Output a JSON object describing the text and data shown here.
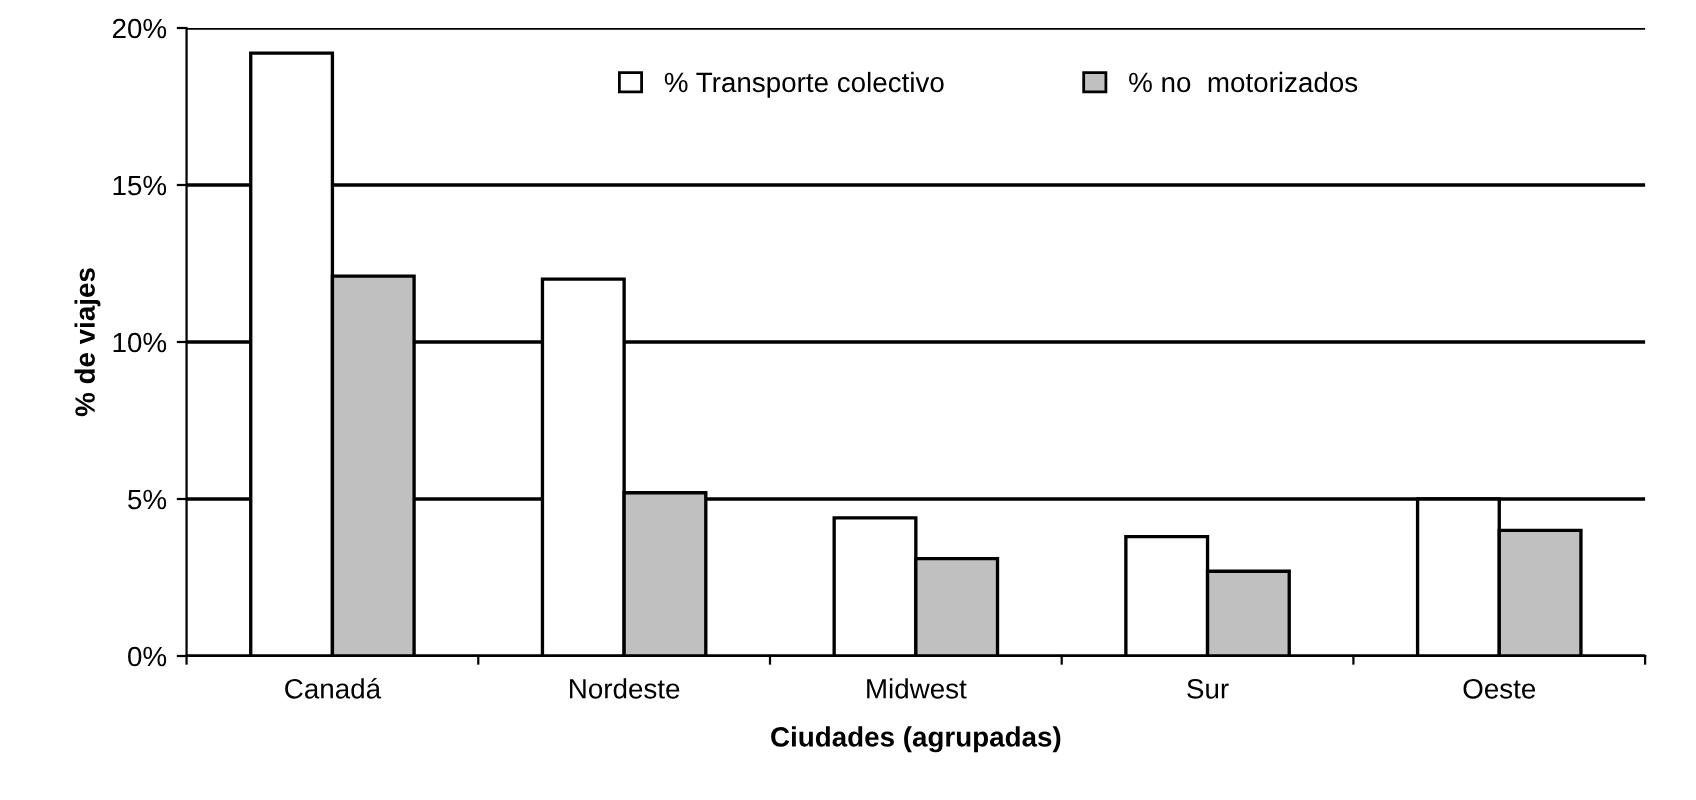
{
  "chart_data": {
    "type": "bar",
    "xlabel": "Ciudades (agrupadas)",
    "ylabel": "% de viajes",
    "categories": [
      "Canadá",
      "Nordeste",
      "Midwest",
      "Sur",
      "Oeste"
    ],
    "series": [
      {
        "name": "% Transporte colectivo",
        "color": "#ffffff",
        "values": [
          19.2,
          12.0,
          4.4,
          3.8,
          5.0
        ]
      },
      {
        "name": "% no  motorizados",
        "color": "#c0c0c0",
        "values": [
          12.1,
          5.2,
          3.1,
          2.7,
          4.0
        ]
      }
    ],
    "ylim": [
      0,
      20
    ],
    "yticks": [
      {
        "value": 0,
        "label": "0%"
      },
      {
        "value": 5,
        "label": "5%"
      },
      {
        "value": 10,
        "label": "10%"
      },
      {
        "value": 15,
        "label": "15%"
      },
      {
        "value": 20,
        "label": "20%"
      }
    ],
    "grid": "y",
    "legend": "top"
  }
}
